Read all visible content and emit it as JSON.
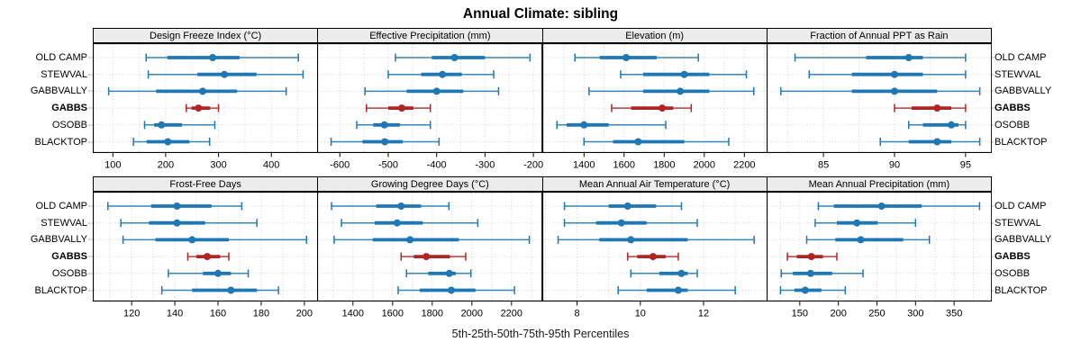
{
  "title": "Annual Climate: sibling",
  "caption": "5th-25th-50th-75th-95th Percentiles",
  "stations": [
    {
      "label": "OLD CAMP",
      "highlight": false
    },
    {
      "label": "STEWVAL",
      "highlight": false
    },
    {
      "label": "GABBVALLY",
      "highlight": false
    },
    {
      "label": "GABBS",
      "highlight": true
    },
    {
      "label": "OSOBB",
      "highlight": false
    },
    {
      "label": "BLACKTOP",
      "highlight": false
    }
  ],
  "colors": {
    "series_blue": "#1f77b4",
    "series_red": "#b12423",
    "strip_bg": "#ececec",
    "grid_dots": "#cfcfcf",
    "panel_border": "#000000",
    "tick_color": "#000000"
  },
  "chart_data": {
    "type": "scatter",
    "subtype": "percentile-interval-dotplot",
    "percentile_levels": [
      5,
      25,
      50,
      75,
      95
    ],
    "categories": [
      "OLD CAMP",
      "STEWVAL",
      "GABBVALLY",
      "GABBS",
      "OSOBB",
      "BLACKTOP"
    ],
    "highlighted_category": "GABBS",
    "grid": "dotted",
    "panels": [
      {
        "title": "Design Freeze Index (°C)",
        "xlim": [
          62,
          487
        ],
        "ticks": [
          100,
          200,
          300,
          400
        ],
        "minor_step": 50,
        "values": [
          [
            163,
            203,
            289,
            340,
            451
          ],
          [
            167,
            260,
            311,
            372,
            460
          ],
          [
            92,
            182,
            270,
            335,
            428
          ],
          [
            239,
            249,
            262,
            284,
            300
          ],
          [
            160,
            178,
            192,
            231,
            293
          ],
          [
            139,
            164,
            204,
            245,
            283
          ]
        ]
      },
      {
        "title": "Effective Precipitation (mm)",
        "xlim": [
          -647,
          -183
        ],
        "ticks": [
          -600,
          -500,
          -400,
          -300,
          -200
        ],
        "minor_step": 50,
        "values": [
          [
            -485,
            -410,
            -363,
            -300,
            -207
          ],
          [
            -500,
            -432,
            -388,
            -348,
            -282
          ],
          [
            -548,
            -462,
            -400,
            -345,
            -272
          ],
          [
            -545,
            -500,
            -472,
            -448,
            -413
          ],
          [
            -565,
            -531,
            -508,
            -476,
            -413
          ],
          [
            -618,
            -553,
            -507,
            -470,
            -395
          ]
        ]
      },
      {
        "title": "Elevation (m)",
        "xlim": [
          1192,
          2312
        ],
        "ticks": [
          1400,
          1600,
          1800,
          2000,
          2200
        ],
        "minor_step": 100,
        "values": [
          [
            1355,
            1478,
            1610,
            1763,
            1970
          ],
          [
            1583,
            1695,
            1900,
            2025,
            2210
          ],
          [
            1425,
            1695,
            1880,
            2025,
            2247
          ],
          [
            1538,
            1635,
            1790,
            1845,
            1935
          ],
          [
            1265,
            1313,
            1400,
            1523,
            1808
          ],
          [
            1400,
            1545,
            1670,
            1900,
            2122
          ]
        ]
      },
      {
        "title": "Fraction of Annual PPT as Rain",
        "xlim": [
          81,
          96.8
        ],
        "ticks": [
          85,
          90,
          95
        ],
        "minor_step": 2.5,
        "values": [
          [
            83,
            88,
            91,
            92,
            95
          ],
          [
            84,
            87,
            90,
            92,
            95
          ],
          [
            82,
            87,
            90,
            93,
            96
          ],
          [
            90,
            91.2,
            93,
            94,
            95
          ],
          [
            91,
            92,
            94,
            94.5,
            95
          ],
          [
            89,
            91,
            93,
            94,
            96
          ]
        ]
      },
      {
        "title": "Frost-Free Days",
        "xlim": [
          102,
          206
        ],
        "ticks": [
          120,
          140,
          160,
          180,
          200
        ],
        "minor_step": 10,
        "values": [
          [
            109,
            129,
            141,
            157,
            171
          ],
          [
            115,
            128,
            141,
            154,
            178
          ],
          [
            116,
            131,
            148,
            165,
            201
          ],
          [
            146,
            150,
            155,
            161,
            165
          ],
          [
            137,
            153,
            160,
            166,
            174
          ],
          [
            134,
            148,
            166,
            178,
            188
          ]
        ]
      },
      {
        "title": "Growing Degree Days (°C)",
        "xlim": [
          1219,
          2352
        ],
        "ticks": [
          1400,
          1600,
          1800,
          2000,
          2200
        ],
        "minor_step": 100,
        "values": [
          [
            1292,
            1517,
            1643,
            1744,
            1884
          ],
          [
            1342,
            1510,
            1623,
            1752,
            2030
          ],
          [
            1305,
            1500,
            1688,
            1934,
            2290
          ],
          [
            1643,
            1707,
            1770,
            1889,
            1969
          ],
          [
            1670,
            1780,
            1886,
            1919,
            1995
          ],
          [
            1628,
            1737,
            1896,
            2018,
            2215
          ]
        ]
      },
      {
        "title": "Mean Annual Air Temperature (°C)",
        "xlim": [
          6.9,
          14
        ],
        "ticks": [
          8,
          10,
          12
        ],
        "minor_step": 1,
        "values": [
          [
            7.6,
            9.0,
            9.6,
            10.5,
            11.3
          ],
          [
            7.6,
            8.6,
            9.4,
            10.2,
            11.8
          ],
          [
            7.4,
            8.7,
            9.7,
            11.5,
            13.6
          ],
          [
            9.6,
            9.9,
            10.4,
            10.8,
            11.2
          ],
          [
            9.7,
            10.6,
            11.3,
            11.5,
            11.8
          ],
          [
            9.3,
            10.2,
            11.2,
            11.5,
            13.0
          ]
        ]
      },
      {
        "title": "Mean Annual Precipitation (mm)",
        "xlim": [
          107,
          398
        ],
        "ticks": [
          150,
          200,
          250,
          300,
          350
        ],
        "minor_step": 25,
        "values": [
          [
            174,
            194,
            256,
            308,
            383
          ],
          [
            170,
            198,
            224,
            251,
            300
          ],
          [
            159,
            196,
            229,
            284,
            318
          ],
          [
            134,
            146,
            165,
            180,
            198
          ],
          [
            126,
            141,
            164,
            192,
            232
          ],
          [
            125,
            143,
            157,
            178,
            209
          ]
        ]
      }
    ]
  }
}
